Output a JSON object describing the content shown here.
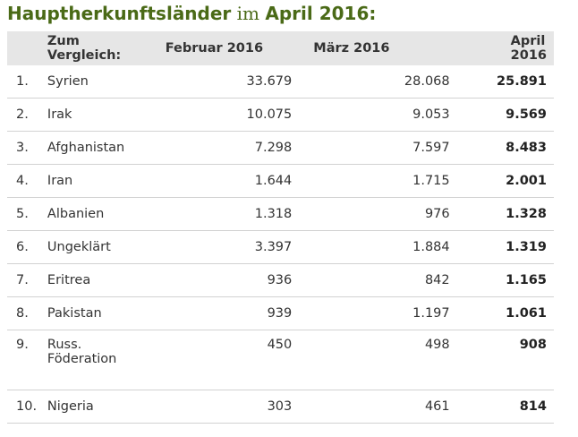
{
  "title": {
    "part1": "Hauptherkunftsländer",
    "part2": "im",
    "part3": "April 2016:"
  },
  "header": {
    "compare_label": "Zum Vergleich:",
    "col_feb": "Februar 2016",
    "col_mar": "März 2016",
    "col_apr": "April 2016"
  },
  "rows": [
    {
      "rank": "1.",
      "country": "Syrien",
      "feb": "33.679",
      "mar": "28.068",
      "apr": "25.891"
    },
    {
      "rank": "2.",
      "country": "Irak",
      "feb": "10.075",
      "mar": "9.053",
      "apr": "9.569"
    },
    {
      "rank": "3.",
      "country": "Afghanistan",
      "feb": "7.298",
      "mar": "7.597",
      "apr": "8.483"
    },
    {
      "rank": "4.",
      "country": "Iran",
      "feb": "1.644",
      "mar": "1.715",
      "apr": "2.001"
    },
    {
      "rank": "5.",
      "country": "Albanien",
      "feb": "1.318",
      "mar": "976",
      "apr": "1.328"
    },
    {
      "rank": "6.",
      "country": "Ungeklärt",
      "feb": "3.397",
      "mar": "1.884",
      "apr": "1.319"
    },
    {
      "rank": "7.",
      "country": "Eritrea",
      "feb": "936",
      "mar": "842",
      "apr": "1.165"
    },
    {
      "rank": "8.",
      "country": "Pakistan",
      "feb": "939",
      "mar": "1.197",
      "apr": "1.061"
    },
    {
      "rank": "9.",
      "country": "Russ. Föderation",
      "feb": "450",
      "mar": "498",
      "apr": "908"
    },
    {
      "rank": "10.",
      "country": "Nigeria",
      "feb": "303",
      "mar": "461",
      "apr": "814"
    }
  ]
}
